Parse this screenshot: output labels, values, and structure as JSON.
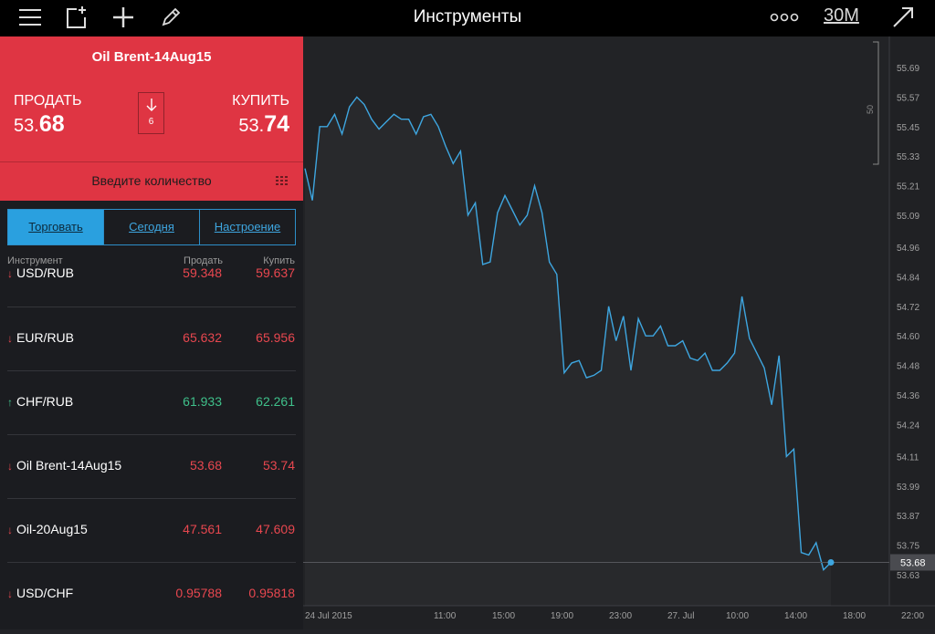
{
  "topbar": {
    "title": "Инструменты",
    "timeframe": "30M",
    "icons": [
      "menu-icon",
      "add-window-icon",
      "plus-icon",
      "pencil-icon",
      "more-icon",
      "expand-icon"
    ]
  },
  "instrument": {
    "name": "Oil Brent-14Aug15",
    "sell_label": "ПРОДАТЬ",
    "sell_prefix": "53.",
    "sell_big": "68",
    "buy_label": "КУПИТЬ",
    "buy_prefix": "53.",
    "buy_big": "74",
    "spread": "6",
    "qty_placeholder": "Введите количество"
  },
  "tabs": [
    {
      "label": "Торговать",
      "active": true
    },
    {
      "label": "Сегодня",
      "active": false
    },
    {
      "label": "Настроение",
      "active": false
    }
  ],
  "table": {
    "headers": {
      "instrument": "Инструмент",
      "sell": "Продать",
      "buy": "Купить"
    },
    "rows": [
      {
        "name": "USD/RUB",
        "dir": "down",
        "sell": "59.348",
        "buy": "59.637"
      },
      {
        "name": "EUR/RUB",
        "dir": "down",
        "sell": "65.632",
        "buy": "65.956"
      },
      {
        "name": "CHF/RUB",
        "dir": "up",
        "sell": "61.933",
        "buy": "62.261"
      },
      {
        "name": "Oil Brent-14Aug15",
        "dir": "down",
        "sell": "53.68",
        "buy": "53.74"
      },
      {
        "name": "Oil-20Aug15",
        "dir": "down",
        "sell": "47.561",
        "buy": "47.609"
      },
      {
        "name": "USD/CHF",
        "dir": "down",
        "sell": "0.95788",
        "buy": "0.95818"
      }
    ]
  },
  "colors": {
    "red_panel": "#df3543",
    "down": "#e8474f",
    "up": "#3fc08a",
    "accent": "#2aa0df",
    "line": "#3ea6e0"
  },
  "chart_data": {
    "type": "line",
    "current_price": "53.68",
    "scale_label": "50",
    "y_ticks": [
      "55.69",
      "55.57",
      "55.45",
      "55.33",
      "55.21",
      "55.09",
      "54.96",
      "54.84",
      "54.72",
      "54.60",
      "54.48",
      "54.36",
      "54.24",
      "54.11",
      "53.99",
      "53.87",
      "53.75",
      "53.63"
    ],
    "x_ticks": [
      "24 Jul 2015",
      "11:00",
      "15:00",
      "19:00",
      "23:00",
      "27. Jul",
      "10:00",
      "14:00",
      "18:00",
      "22:00"
    ],
    "series": [
      {
        "values": [
          55.28,
          55.15,
          55.45,
          55.45,
          55.5,
          55.42,
          55.53,
          55.57,
          55.54,
          55.48,
          55.44,
          55.47,
          55.5,
          55.48,
          55.48,
          55.42,
          55.49,
          55.5,
          55.45,
          55.37,
          55.3,
          55.35,
          55.09,
          55.14,
          54.89,
          54.9,
          55.1,
          55.17,
          55.11,
          55.05,
          55.09,
          55.21,
          55.1,
          54.9,
          54.85,
          54.45,
          54.49,
          54.5,
          54.43,
          54.44,
          54.46,
          54.72,
          54.58,
          54.68,
          54.46,
          54.67,
          54.6,
          54.6,
          54.64,
          54.56,
          54.56,
          54.58,
          54.51,
          54.5,
          54.53,
          54.46,
          54.46,
          54.49,
          54.53,
          54.76,
          54.59,
          54.53,
          54.47,
          54.32,
          54.52,
          54.11,
          54.14,
          53.72,
          53.71,
          53.76,
          53.65,
          53.68
        ]
      }
    ]
  }
}
